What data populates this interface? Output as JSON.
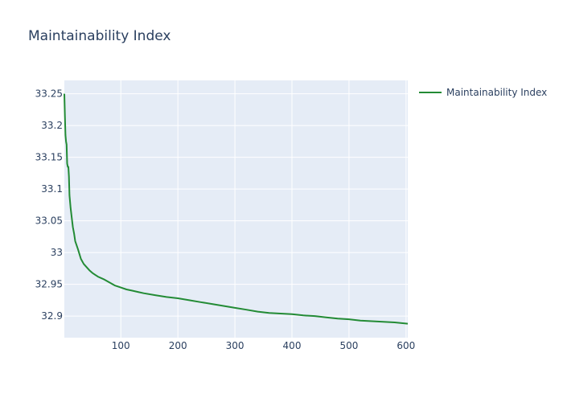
{
  "chart_data": {
    "type": "line",
    "title": "Maintainability Index",
    "xlabel": "",
    "ylabel": "",
    "xlim": [
      1,
      603
    ],
    "ylim": [
      32.866,
      33.271
    ],
    "x_ticks": [
      100,
      200,
      300,
      400,
      500,
      600
    ],
    "y_ticks": [
      32.9,
      32.95,
      33,
      33.05,
      33.1,
      33.15,
      33.2,
      33.25
    ],
    "y_tick_labels": [
      "32.9",
      "32.95",
      "33",
      "33.05",
      "33.1",
      "33.15",
      "33.2",
      "33.25"
    ],
    "grid": true,
    "legend_position": "top-right",
    "series": [
      {
        "name": "Maintainability Index",
        "color": "#238b35",
        "x": [
          1,
          2,
          3,
          4,
          5,
          6,
          7,
          8,
          9,
          10,
          12,
          14,
          16,
          18,
          20,
          25,
          30,
          35,
          40,
          45,
          50,
          55,
          60,
          70,
          80,
          90,
          100,
          110,
          120,
          130,
          140,
          160,
          180,
          200,
          220,
          240,
          260,
          280,
          300,
          320,
          340,
          360,
          380,
          400,
          420,
          440,
          460,
          480,
          500,
          520,
          540,
          560,
          580,
          603
        ],
        "values": [
          33.25,
          33.215,
          33.185,
          33.175,
          33.17,
          33.14,
          33.135,
          33.135,
          33.12,
          33.09,
          33.07,
          33.055,
          33.04,
          33.03,
          33.018,
          33.005,
          32.99,
          32.982,
          32.977,
          32.972,
          32.968,
          32.965,
          32.962,
          32.958,
          32.953,
          32.948,
          32.945,
          32.942,
          32.94,
          32.938,
          32.936,
          32.933,
          32.93,
          32.928,
          32.925,
          32.922,
          32.919,
          32.916,
          32.913,
          32.91,
          32.907,
          32.905,
          32.904,
          32.903,
          32.901,
          32.9,
          32.898,
          32.896,
          32.895,
          32.893,
          32.892,
          32.891,
          32.89,
          32.888
        ]
      }
    ]
  }
}
